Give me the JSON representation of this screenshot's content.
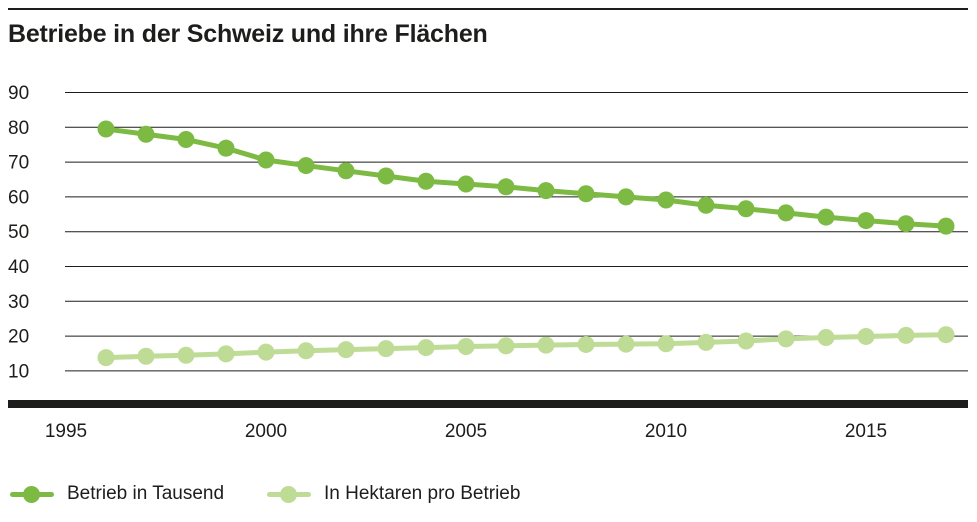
{
  "title": "Betriebe in der Schweiz und ihre Flächen",
  "colors": {
    "ink": "#1d1d1b",
    "series_betriebe": "#7cba43",
    "series_hektaren": "#bedc96",
    "background": "#ffffff"
  },
  "legend": {
    "items": [
      {
        "label": "Betrieb in Tausend",
        "color": "#7cba43"
      },
      {
        "label": "In Hektaren pro Betrieb",
        "color": "#bedc96"
      }
    ]
  },
  "chart_data": {
    "type": "line",
    "title": "Betriebe in der Schweiz und ihre Flächen",
    "x": [
      1996,
      1997,
      1998,
      1999,
      2000,
      2001,
      2002,
      2003,
      2004,
      2005,
      2006,
      2007,
      2008,
      2009,
      2010,
      2011,
      2012,
      2013,
      2014,
      2015,
      2016,
      2017
    ],
    "series": [
      {
        "name": "Betrieb in Tausend",
        "color": "#7cba43",
        "values": [
          79.5,
          78.0,
          76.5,
          74.0,
          70.6,
          69.0,
          67.5,
          66.0,
          64.5,
          63.7,
          62.9,
          61.8,
          60.9,
          60.0,
          59.1,
          57.6,
          56.6,
          55.4,
          54.2,
          53.2,
          52.3,
          51.6
        ]
      },
      {
        "name": "In Hektaren pro Betrieb",
        "color": "#bedc96",
        "values": [
          13.8,
          14.2,
          14.5,
          14.9,
          15.4,
          15.8,
          16.1,
          16.4,
          16.7,
          17.0,
          17.2,
          17.4,
          17.6,
          17.7,
          17.8,
          18.2,
          18.6,
          19.2,
          19.6,
          19.9,
          20.2,
          20.4
        ]
      }
    ],
    "xticks": [
      1995,
      2000,
      2005,
      2010,
      2015
    ],
    "yticks": [
      90,
      80,
      70,
      60,
      50,
      40,
      30,
      20,
      10
    ],
    "xlim": [
      1995,
      2017.5
    ],
    "ylim": [
      10,
      90
    ],
    "grid": "horizontal",
    "legend_position": "bottom"
  }
}
